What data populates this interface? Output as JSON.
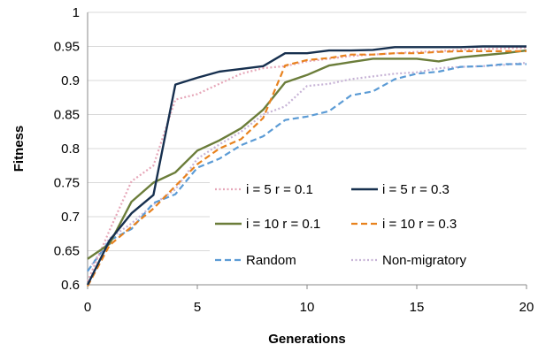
{
  "chart_data": {
    "type": "line",
    "title": "",
    "xlabel": "Generations",
    "ylabel": "Fitness",
    "xlim": [
      0,
      20
    ],
    "ylim": [
      0.6,
      1
    ],
    "xticks": [
      0,
      5,
      10,
      15,
      20
    ],
    "yticks": [
      0.6,
      0.65,
      0.7,
      0.75,
      0.8,
      0.85,
      0.9,
      0.95,
      1
    ],
    "ytick_labels": [
      "0.6",
      "0.65",
      "0.7",
      "0.75",
      "0.8",
      "0.85",
      "0.9",
      "0.95",
      "1"
    ],
    "grid": "horizontal",
    "legend_position": "bottom-right inside",
    "x": [
      0,
      1,
      2,
      3,
      4,
      5,
      6,
      7,
      8,
      9,
      10,
      11,
      12,
      13,
      14,
      15,
      16,
      17,
      18,
      19,
      20
    ],
    "series": [
      {
        "name": "i = 5 r = 0.1",
        "color": "#e6a6b8",
        "dash": "dotted",
        "values": [
          0.605,
          0.68,
          0.752,
          0.775,
          0.872,
          0.88,
          0.895,
          0.91,
          0.918,
          0.921,
          0.928,
          0.932,
          0.936,
          0.938,
          0.94,
          0.942,
          0.943,
          0.945,
          0.946,
          0.947,
          0.948
        ]
      },
      {
        "name": "i = 5 r = 0.3",
        "color": "#17304f",
        "dash": "solid",
        "values": [
          0.6,
          0.665,
          0.705,
          0.732,
          0.894,
          0.904,
          0.913,
          0.917,
          0.921,
          0.94,
          0.94,
          0.944,
          0.944,
          0.945,
          0.949,
          0.949,
          0.949,
          0.949,
          0.95,
          0.95,
          0.95
        ]
      },
      {
        "name": "i = 10 r = 0.1",
        "color": "#6b7d3a",
        "dash": "solid",
        "values": [
          0.638,
          0.66,
          0.722,
          0.75,
          0.765,
          0.797,
          0.812,
          0.83,
          0.857,
          0.897,
          0.908,
          0.922,
          0.927,
          0.932,
          0.932,
          0.932,
          0.928,
          0.934,
          0.937,
          0.94,
          0.944
        ]
      },
      {
        "name": "i = 10 r = 0.3",
        "color": "#e8821e",
        "dash": "dashed",
        "values": [
          0.598,
          0.658,
          0.685,
          0.712,
          0.745,
          0.777,
          0.8,
          0.814,
          0.845,
          0.922,
          0.93,
          0.933,
          0.938,
          0.938,
          0.94,
          0.94,
          0.942,
          0.943,
          0.943,
          0.943,
          0.943
        ]
      },
      {
        "name": "Random",
        "color": "#5b9bd5",
        "dash": "dashed",
        "values": [
          0.62,
          0.665,
          0.682,
          0.72,
          0.733,
          0.772,
          0.785,
          0.805,
          0.818,
          0.842,
          0.847,
          0.855,
          0.878,
          0.884,
          0.902,
          0.91,
          0.913,
          0.92,
          0.921,
          0.924,
          0.924
        ]
      },
      {
        "name": "Non-migratory",
        "color": "#c7b3d6",
        "dash": "dotted",
        "values": [
          0.62,
          0.668,
          0.69,
          0.718,
          0.74,
          0.785,
          0.806,
          0.825,
          0.85,
          0.862,
          0.892,
          0.895,
          0.902,
          0.906,
          0.91,
          0.912,
          0.918,
          0.92,
          0.921,
          0.923,
          0.926
        ]
      }
    ]
  }
}
